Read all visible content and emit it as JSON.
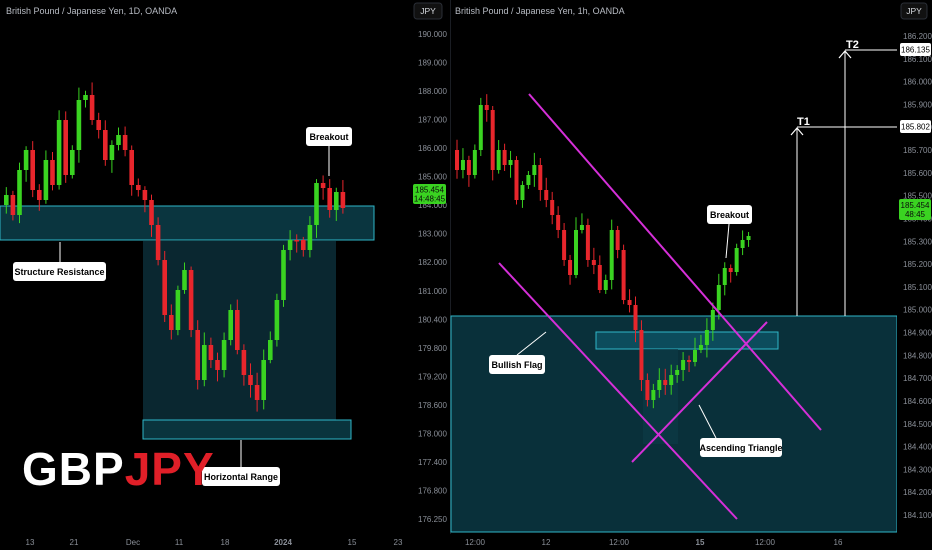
{
  "colors": {
    "background": "#000000",
    "bull": "#3ad321",
    "bear": "#e8262c",
    "zone_fill": "#0b3a44",
    "zone_stroke": "#2fb6c8",
    "channel": "#d52fd8",
    "price_tag": "#3ad321",
    "axis_text": "#8a8f98"
  },
  "logo": {
    "part1": "GBP",
    "part2": "JPY"
  },
  "chart_data": [
    {
      "type": "candlestick",
      "title": "British Pound / Japanese Yen, 1D, OANDA",
      "currency_badge": "JPY",
      "y_ticks": [
        "190.000",
        "189.000",
        "188.000",
        "187.000",
        "186.000",
        "185.000",
        "184.000",
        "183.000",
        "182.000",
        "181.000",
        "180.400",
        "179.800",
        "179.200",
        "178.600",
        "178.000",
        "177.400",
        "176.800",
        "176.250"
      ],
      "x_ticks": [
        "13",
        "21",
        "Dec",
        "11",
        "18",
        "2024",
        "15",
        "23"
      ],
      "last_price": "185.454",
      "countdown": "14:48:45",
      "annotations": [
        "Structure Resistance",
        "Horizontal Range",
        "Breakout"
      ]
    },
    {
      "type": "candlestick",
      "title": "British Pound / Japanese Yen, 1h, OANDA",
      "currency_badge": "JPY",
      "y_ticks": [
        "186.200",
        "186.100",
        "186.000",
        "185.900",
        "185.800",
        "185.700",
        "185.600",
        "185.500",
        "185.400",
        "185.300",
        "185.200",
        "185.100",
        "185.000",
        "184.900",
        "184.800",
        "184.700",
        "184.600",
        "184.500",
        "184.400",
        "184.300",
        "184.200",
        "184.100"
      ],
      "x_ticks": [
        "12:00",
        "12",
        "12:00",
        "15",
        "12:00",
        "16"
      ],
      "last_price": "185.454",
      "countdown": "48:45",
      "target_tags": [
        "186.135",
        "185.802"
      ],
      "annotations": [
        "Bullish Flag",
        "Ascending Triangle",
        "Breakout",
        "T1",
        "T2"
      ]
    }
  ]
}
